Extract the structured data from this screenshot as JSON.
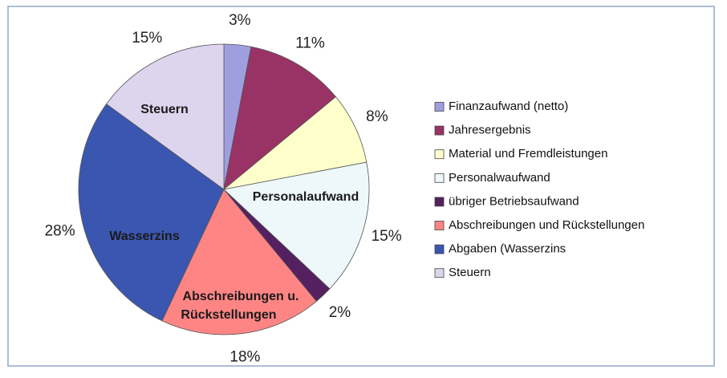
{
  "chart_data": {
    "type": "pie",
    "categories": [
      "Finanzaufwand (netto)",
      "Jahresergebnis",
      "Material und Fremdleistungen",
      "Personalwaufwand",
      "übriger Betriebsaufwand",
      "Abschreibungen und Rückstellungen",
      "Abgaben (Wasserzins",
      "Steuern"
    ],
    "values": [
      3,
      11,
      8,
      15,
      2,
      18,
      28,
      15
    ],
    "value_labels": [
      "3%",
      "11%",
      "8%",
      "15%",
      "2%",
      "18%",
      "28%",
      "15%"
    ],
    "colors": [
      "#9f9fe0",
      "#993366",
      "#ffffcc",
      "#eef8fb",
      "#552060",
      "#ff8585",
      "#3a56b0",
      "#ddd5ee"
    ],
    "annotations": [
      "Steuern",
      "Personalaufwand",
      "Wasserzins",
      "Abschreibungen u.",
      "Rückstellungen"
    ],
    "legend": "right"
  }
}
